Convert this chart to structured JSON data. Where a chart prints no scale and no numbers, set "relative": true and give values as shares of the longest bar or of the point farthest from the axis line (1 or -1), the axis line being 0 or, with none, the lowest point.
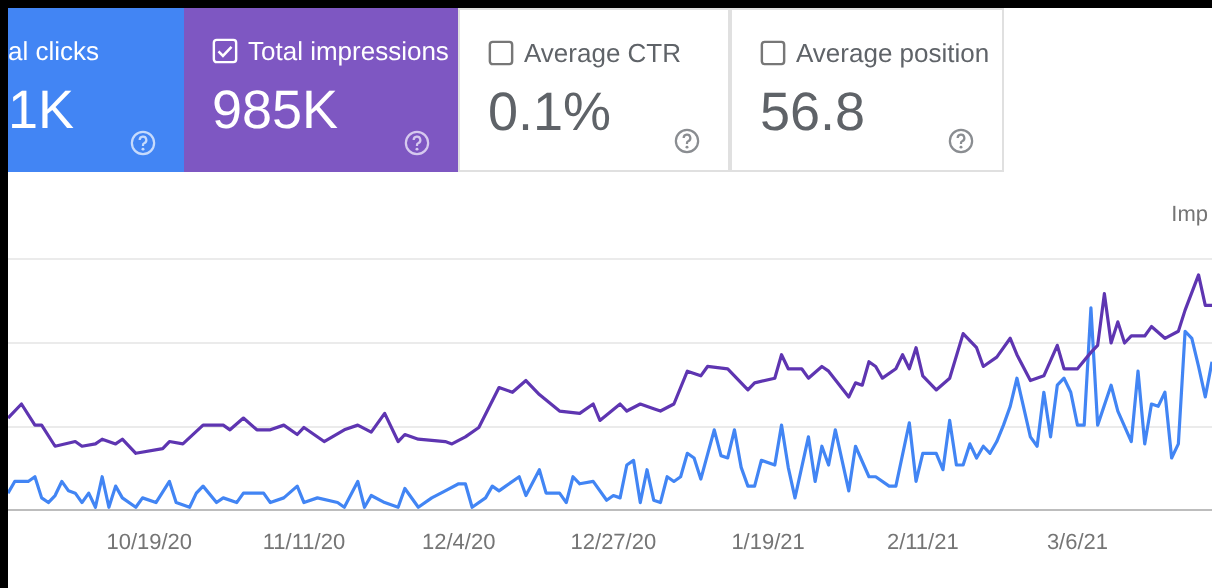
{
  "chart_data": [
    {
      "type": "other",
      "annotations": [
        "al clicks",
        "1K",
        "Total impressions",
        "985K",
        "Average CTR",
        "0.1%",
        "Average position",
        "56.8"
      ]
    },
    {
      "type": "line",
      "relative": true,
      "ref_lines": [
        {
          "axis": "y",
          "value": 0.36,
          "color": "#ebebeb"
        },
        {
          "axis": "y",
          "value": 0.71,
          "color": "#ebebeb"
        },
        {
          "axis": "y",
          "value": 1.07,
          "color": "#ebebeb"
        }
      ],
      "marker": "none",
      "line_style": "solid",
      "xlim": [
        "2020-09-28",
        "2021-03-26"
      ],
      "xticks": [
        {
          "value": "2020-10-19",
          "label": "10/19/20"
        },
        {
          "value": "2020-11-11",
          "label": "11/11/20"
        },
        {
          "value": "2020-12-04",
          "label": "12/4/20"
        },
        {
          "value": "2020-12-27",
          "label": "12/27/20"
        },
        {
          "value": "2021-01-19",
          "label": "1/19/21"
        },
        {
          "value": "2021-02-11",
          "label": "2/11/21"
        },
        {
          "value": "2021-03-06",
          "label": "3/6/21"
        }
      ],
      "annotations": [
        "Imp"
      ],
      "series": [
        {
          "color": "#5e35b1",
          "x": [
            "2020-09-28",
            "2020-09-30",
            "2020-10-02",
            "2020-10-03",
            "2020-10-05",
            "2020-10-08",
            "2020-10-09",
            "2020-10-11",
            "2020-10-12",
            "2020-10-14",
            "2020-10-15",
            "2020-10-17",
            "2020-10-21",
            "2020-10-22",
            "2020-10-24",
            "2020-10-27",
            "2020-10-30",
            "2020-10-31",
            "2020-11-02",
            "2020-11-04",
            "2020-11-06",
            "2020-11-08",
            "2020-11-10",
            "2020-11-11",
            "2020-11-14",
            "2020-11-17",
            "2020-11-19",
            "2020-11-21",
            "2020-11-23",
            "2020-11-25",
            "2020-11-26",
            "2020-11-28",
            "2020-12-02",
            "2020-12-03",
            "2020-12-05",
            "2020-12-07",
            "2020-12-10",
            "2020-12-12",
            "2020-12-14",
            "2020-12-16",
            "2020-12-19",
            "2020-12-22",
            "2020-12-24",
            "2020-12-25",
            "2020-12-28",
            "2020-12-29",
            "2020-12-31",
            "2021-01-02",
            "2021-01-03",
            "2021-01-05",
            "2021-01-07",
            "2021-01-09",
            "2021-01-10",
            "2021-01-13",
            "2021-01-16",
            "2021-01-17",
            "2021-01-20",
            "2021-01-21",
            "2021-01-22",
            "2021-01-24",
            "2021-01-25",
            "2021-01-27",
            "2021-01-28",
            "2021-01-31",
            "2021-02-01",
            "2021-02-02",
            "2021-02-03",
            "2021-02-04",
            "2021-02-05",
            "2021-02-07",
            "2021-02-08",
            "2021-02-09",
            "2021-02-10",
            "2021-02-11",
            "2021-02-13",
            "2021-02-15",
            "2021-02-17",
            "2021-02-19",
            "2021-02-20",
            "2021-02-22",
            "2021-02-24",
            "2021-02-25",
            "2021-02-27",
            "2021-03-01",
            "2021-03-03",
            "2021-03-04",
            "2021-03-06",
            "2021-03-08",
            "2021-03-09",
            "2021-03-10",
            "2021-03-11",
            "2021-03-12",
            "2021-03-13",
            "2021-03-14",
            "2021-03-16",
            "2021-03-17",
            "2021-03-19",
            "2021-03-21",
            "2021-03-22",
            "2021-03-24",
            "2021-03-25",
            "2021-03-26"
          ],
          "values": [
            0.39,
            0.45,
            0.36,
            0.36,
            0.27,
            0.29,
            0.27,
            0.28,
            0.3,
            0.28,
            0.3,
            0.24,
            0.26,
            0.29,
            0.28,
            0.36,
            0.36,
            0.34,
            0.39,
            0.34,
            0.34,
            0.36,
            0.32,
            0.35,
            0.29,
            0.34,
            0.36,
            0.33,
            0.41,
            0.29,
            0.32,
            0.3,
            0.29,
            0.28,
            0.31,
            0.35,
            0.52,
            0.5,
            0.55,
            0.49,
            0.42,
            0.41,
            0.45,
            0.38,
            0.45,
            0.42,
            0.45,
            0.43,
            0.42,
            0.45,
            0.59,
            0.57,
            0.61,
            0.6,
            0.51,
            0.54,
            0.56,
            0.66,
            0.6,
            0.6,
            0.56,
            0.61,
            0.59,
            0.48,
            0.54,
            0.53,
            0.63,
            0.61,
            0.56,
            0.6,
            0.66,
            0.6,
            0.69,
            0.57,
            0.51,
            0.56,
            0.75,
            0.69,
            0.61,
            0.65,
            0.73,
            0.66,
            0.55,
            0.57,
            0.7,
            0.6,
            0.6,
            0.67,
            0.7,
            0.92,
            0.71,
            0.8,
            0.71,
            0.74,
            0.74,
            0.78,
            0.73,
            0.76,
            0.85,
            1,
            0.87,
            0.87
          ]
        },
        {
          "color": "#4285f4",
          "x": [
            "2020-09-28",
            "2020-09-29",
            "2020-10-01",
            "2020-10-02",
            "2020-10-03",
            "2020-10-04",
            "2020-10-05",
            "2020-10-06",
            "2020-10-07",
            "2020-10-08",
            "2020-10-09",
            "2020-10-10",
            "2020-10-11",
            "2020-10-12",
            "2020-10-13",
            "2020-10-14",
            "2020-10-15",
            "2020-10-17",
            "2020-10-18",
            "2020-10-20",
            "2020-10-22",
            "2020-10-23",
            "2020-10-25",
            "2020-10-26",
            "2020-10-27",
            "2020-10-29",
            "2020-10-30",
            "2020-11-01",
            "2020-11-02",
            "2020-11-05",
            "2020-11-06",
            "2020-11-08",
            "2020-11-10",
            "2020-11-11",
            "2020-11-13",
            "2020-11-16",
            "2020-11-17",
            "2020-11-19",
            "2020-11-20",
            "2020-11-21",
            "2020-11-23",
            "2020-11-25",
            "2020-11-26",
            "2020-11-28",
            "2020-11-30",
            "2020-12-02",
            "2020-12-04",
            "2020-12-05",
            "2020-12-06",
            "2020-12-08",
            "2020-12-09",
            "2020-12-10",
            "2020-12-11",
            "2020-12-13",
            "2020-12-14",
            "2020-12-16",
            "2020-12-17",
            "2020-12-19",
            "2020-12-20",
            "2020-12-21",
            "2020-12-22",
            "2020-12-24",
            "2020-12-26",
            "2020-12-27",
            "2020-12-28",
            "2020-12-29",
            "2020-12-30",
            "2020-12-31",
            "2021-01-01",
            "2021-01-02",
            "2021-01-03",
            "2021-01-04",
            "2021-01-05",
            "2021-01-06",
            "2021-01-07",
            "2021-01-08",
            "2021-01-09",
            "2021-01-11",
            "2021-01-12",
            "2021-01-13",
            "2021-01-14",
            "2021-01-15",
            "2021-01-16",
            "2021-01-17",
            "2021-01-18",
            "2021-01-20",
            "2021-01-21",
            "2021-01-22",
            "2021-01-23",
            "2021-01-25",
            "2021-01-26",
            "2021-01-27",
            "2021-01-28",
            "2021-01-29",
            "2021-01-31",
            "2021-02-01",
            "2021-02-03",
            "2021-02-04",
            "2021-02-06",
            "2021-02-07",
            "2021-02-09",
            "2021-02-10",
            "2021-02-11",
            "2021-02-13",
            "2021-02-14",
            "2021-02-15",
            "2021-02-16",
            "2021-02-17",
            "2021-02-18",
            "2021-02-19",
            "2021-02-20",
            "2021-02-21",
            "2021-02-22",
            "2021-02-23",
            "2021-02-24",
            "2021-02-25",
            "2021-02-27",
            "2021-02-28",
            "2021-03-01",
            "2021-03-02",
            "2021-03-03",
            "2021-03-04",
            "2021-03-05",
            "2021-03-06",
            "2021-03-07",
            "2021-03-08",
            "2021-03-09",
            "2021-03-11",
            "2021-03-12",
            "2021-03-14",
            "2021-03-15",
            "2021-03-16",
            "2021-03-17",
            "2021-03-18",
            "2021-03-19",
            "2021-03-20",
            "2021-03-21",
            "2021-03-22",
            "2021-03-23",
            "2021-03-24",
            "2021-03-25",
            "2021-03-26"
          ],
          "values": [
            0.07,
            0.12,
            0.12,
            0.14,
            0.05,
            0.03,
            0.06,
            0.12,
            0.08,
            0.07,
            0.03,
            0.07,
            0.01,
            0.14,
            0.01,
            0.1,
            0.05,
            0.01,
            0.05,
            0.03,
            0.12,
            0.03,
            0.01,
            0.07,
            0.1,
            0.03,
            0.05,
            0.03,
            0.07,
            0.07,
            0.03,
            0.05,
            0.1,
            0.03,
            0.05,
            0.03,
            0.01,
            0.12,
            0.01,
            0.06,
            0.03,
            0.01,
            0.09,
            0.01,
            0.05,
            0.08,
            0.11,
            0.11,
            0.01,
            0.05,
            0.1,
            0.08,
            0.1,
            0.14,
            0.06,
            0.17,
            0.07,
            0.07,
            0.03,
            0.14,
            0.11,
            0.12,
            0.04,
            0.06,
            0.05,
            0.19,
            0.21,
            0.03,
            0.17,
            0.04,
            0.03,
            0.14,
            0.12,
            0.14,
            0.24,
            0.22,
            0.13,
            0.34,
            0.23,
            0.22,
            0.34,
            0.18,
            0.1,
            0.1,
            0.21,
            0.19,
            0.36,
            0.18,
            0.05,
            0.31,
            0.12,
            0.27,
            0.19,
            0.34,
            0.08,
            0.27,
            0.14,
            0.14,
            0.1,
            0.1,
            0.37,
            0.12,
            0.24,
            0.24,
            0.17,
            0.38,
            0.19,
            0.19,
            0.28,
            0.22,
            0.27,
            0.24,
            0.29,
            0.36,
            0.44,
            0.56,
            0.31,
            0.27,
            0.5,
            0.31,
            0.53,
            0.56,
            0.5,
            0.36,
            0.36,
            0.86,
            0.36,
            0.53,
            0.42,
            0.29,
            0.59,
            0.28,
            0.45,
            0.44,
            0.5,
            0.22,
            0.28,
            0.76,
            0.73,
            0.61,
            0.48,
            0.63
          ]
        }
      ]
    }
  ]
}
